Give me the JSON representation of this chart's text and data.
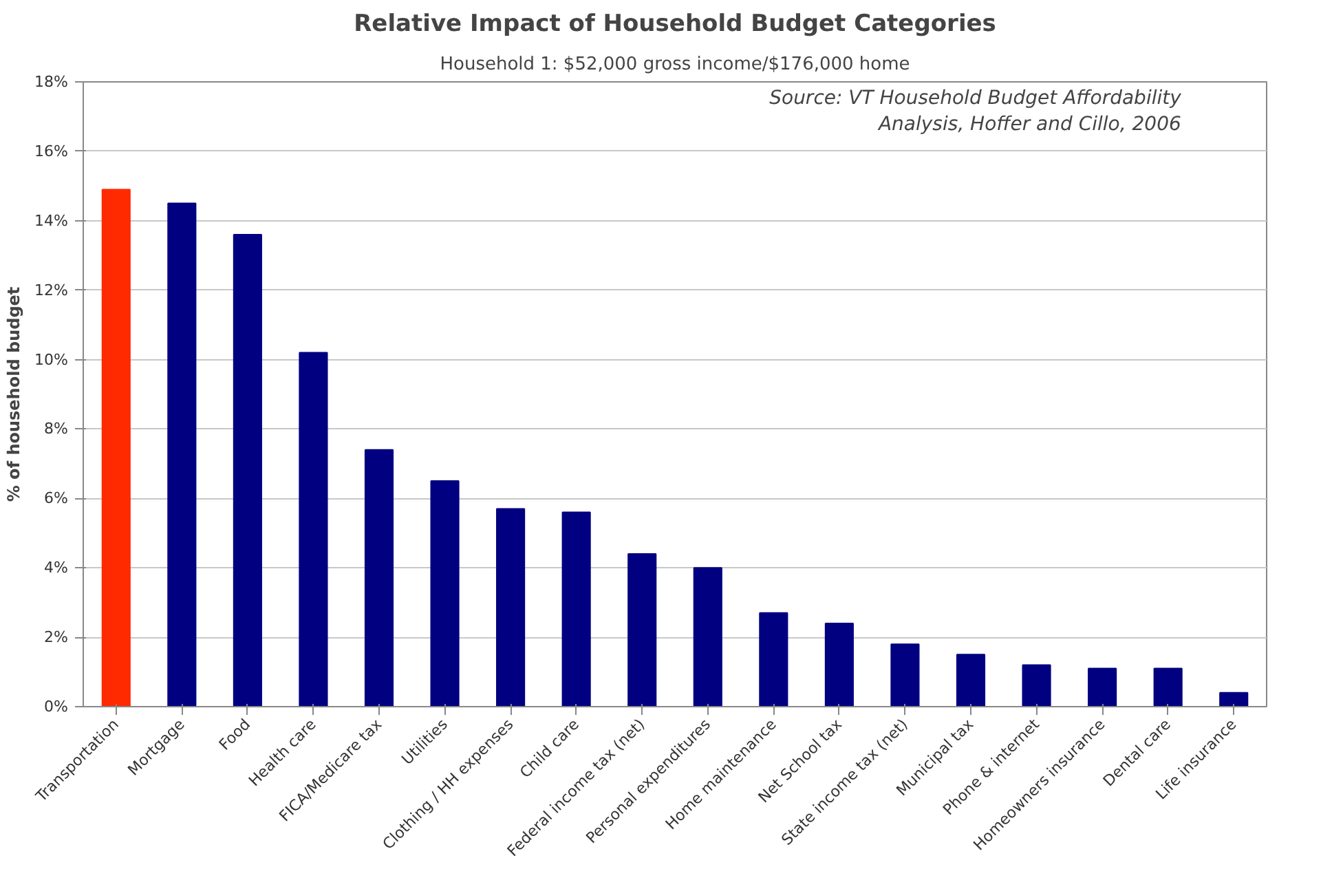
{
  "chart_data": {
    "type": "bar",
    "title": "Relative Impact of Household Budget Categories",
    "subtitle": "Household 1: $52,000 gross income/$176,000 home",
    "ylabel": "% of household budget",
    "annotations": [
      "Source: VT Household Budget Affordability\nAnalysis, Hoffer and Cillo, 2006"
    ],
    "categories": [
      "Transportation",
      "Mortgage",
      "Food",
      "Health care",
      "FICA/Medicare tax",
      "Utilities",
      "Clothing / HH expenses",
      "Child care",
      "Federal income tax (net)",
      "Personal expenditures",
      "Home maintenance",
      "Net School tax",
      "State income tax (net)",
      "Municipal tax",
      "Phone & internet",
      "Homeowners insurance",
      "Dental care",
      "Life insurance"
    ],
    "values": [
      14.9,
      14.5,
      13.6,
      10.2,
      7.4,
      6.5,
      5.7,
      5.6,
      4.4,
      4.0,
      2.7,
      2.4,
      1.8,
      1.5,
      1.2,
      1.1,
      1.1,
      0.4
    ],
    "colors": [
      "#ff2a00",
      "#000080",
      "#000080",
      "#000080",
      "#000080",
      "#000080",
      "#000080",
      "#000080",
      "#000080",
      "#000080",
      "#000080",
      "#000080",
      "#000080",
      "#000080",
      "#000080",
      "#000080",
      "#000080",
      "#000080"
    ],
    "ylim": [
      0,
      18
    ],
    "yticks": [
      {
        "value": 0,
        "label": "0%"
      },
      {
        "value": 2,
        "label": "2%"
      },
      {
        "value": 4,
        "label": "4%"
      },
      {
        "value": 6,
        "label": "6%"
      },
      {
        "value": 8,
        "label": "8%"
      },
      {
        "value": 10,
        "label": "10%"
      },
      {
        "value": 12,
        "label": "12%"
      },
      {
        "value": 14,
        "label": "14%"
      },
      {
        "value": 16,
        "label": "16%"
      },
      {
        "value": 18,
        "label": "18%"
      }
    ],
    "grid": "y"
  }
}
